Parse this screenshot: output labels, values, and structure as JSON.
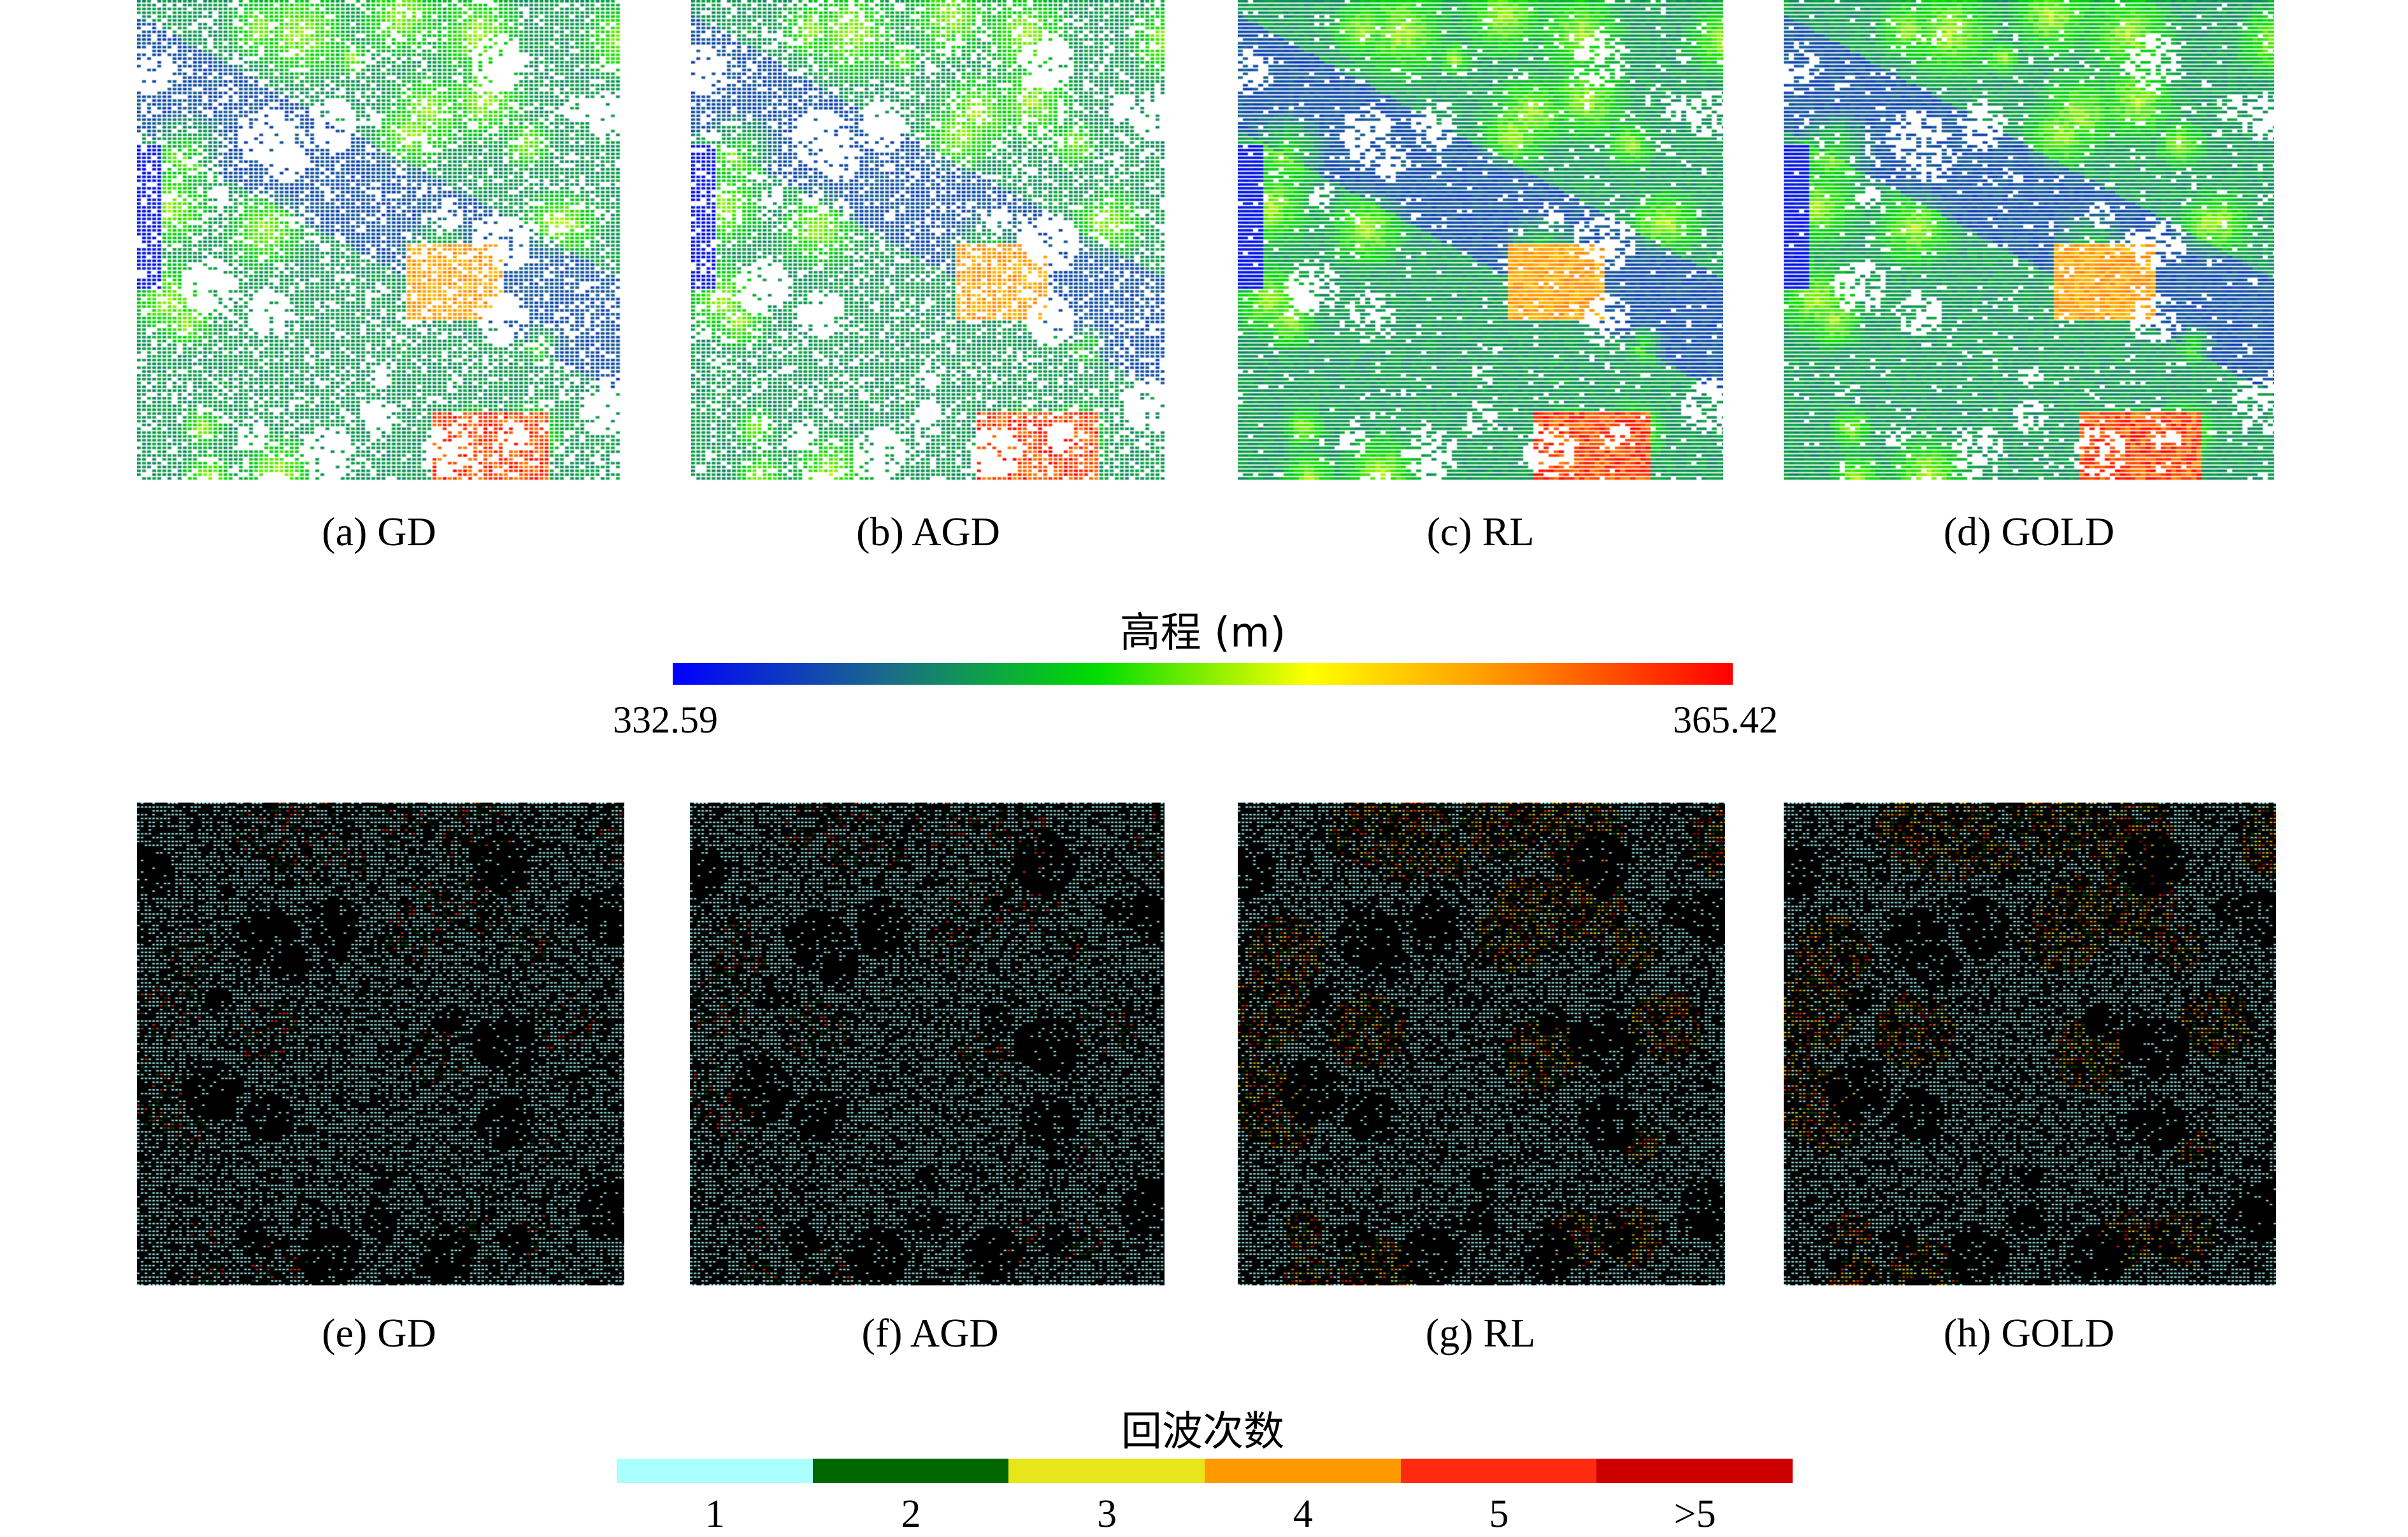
{
  "top_row": {
    "panels": [
      {
        "caption": "(a) GD"
      },
      {
        "caption": "(b) AGD"
      },
      {
        "caption": "(c) RL"
      },
      {
        "caption": "(d) GOLD"
      }
    ]
  },
  "elevation_colorbar": {
    "title": "高程 (m)",
    "min_label": "332.59",
    "max_label": "365.42",
    "min": 332.59,
    "max": 365.42,
    "colors": [
      "#0000ff",
      "#1a6a8a",
      "#00dd00",
      "#ffff00",
      "#ff8800",
      "#ff0000"
    ]
  },
  "bottom_row": {
    "panels": [
      {
        "caption": "(e) GD"
      },
      {
        "caption": "(f) AGD"
      },
      {
        "caption": "(g) RL"
      },
      {
        "caption": "(h) GOLD"
      }
    ]
  },
  "return_colorbar": {
    "title": "回波次数",
    "categories": [
      {
        "label": "1",
        "color": "#aaffff"
      },
      {
        "label": "2",
        "color": "#006600"
      },
      {
        "label": "3",
        "color": "#e6e61a"
      },
      {
        "label": "4",
        "color": "#ff9900"
      },
      {
        "label": "5",
        "color": "#ff2a10"
      },
      {
        "label": ">5",
        "color": "#cc0000"
      }
    ]
  }
}
